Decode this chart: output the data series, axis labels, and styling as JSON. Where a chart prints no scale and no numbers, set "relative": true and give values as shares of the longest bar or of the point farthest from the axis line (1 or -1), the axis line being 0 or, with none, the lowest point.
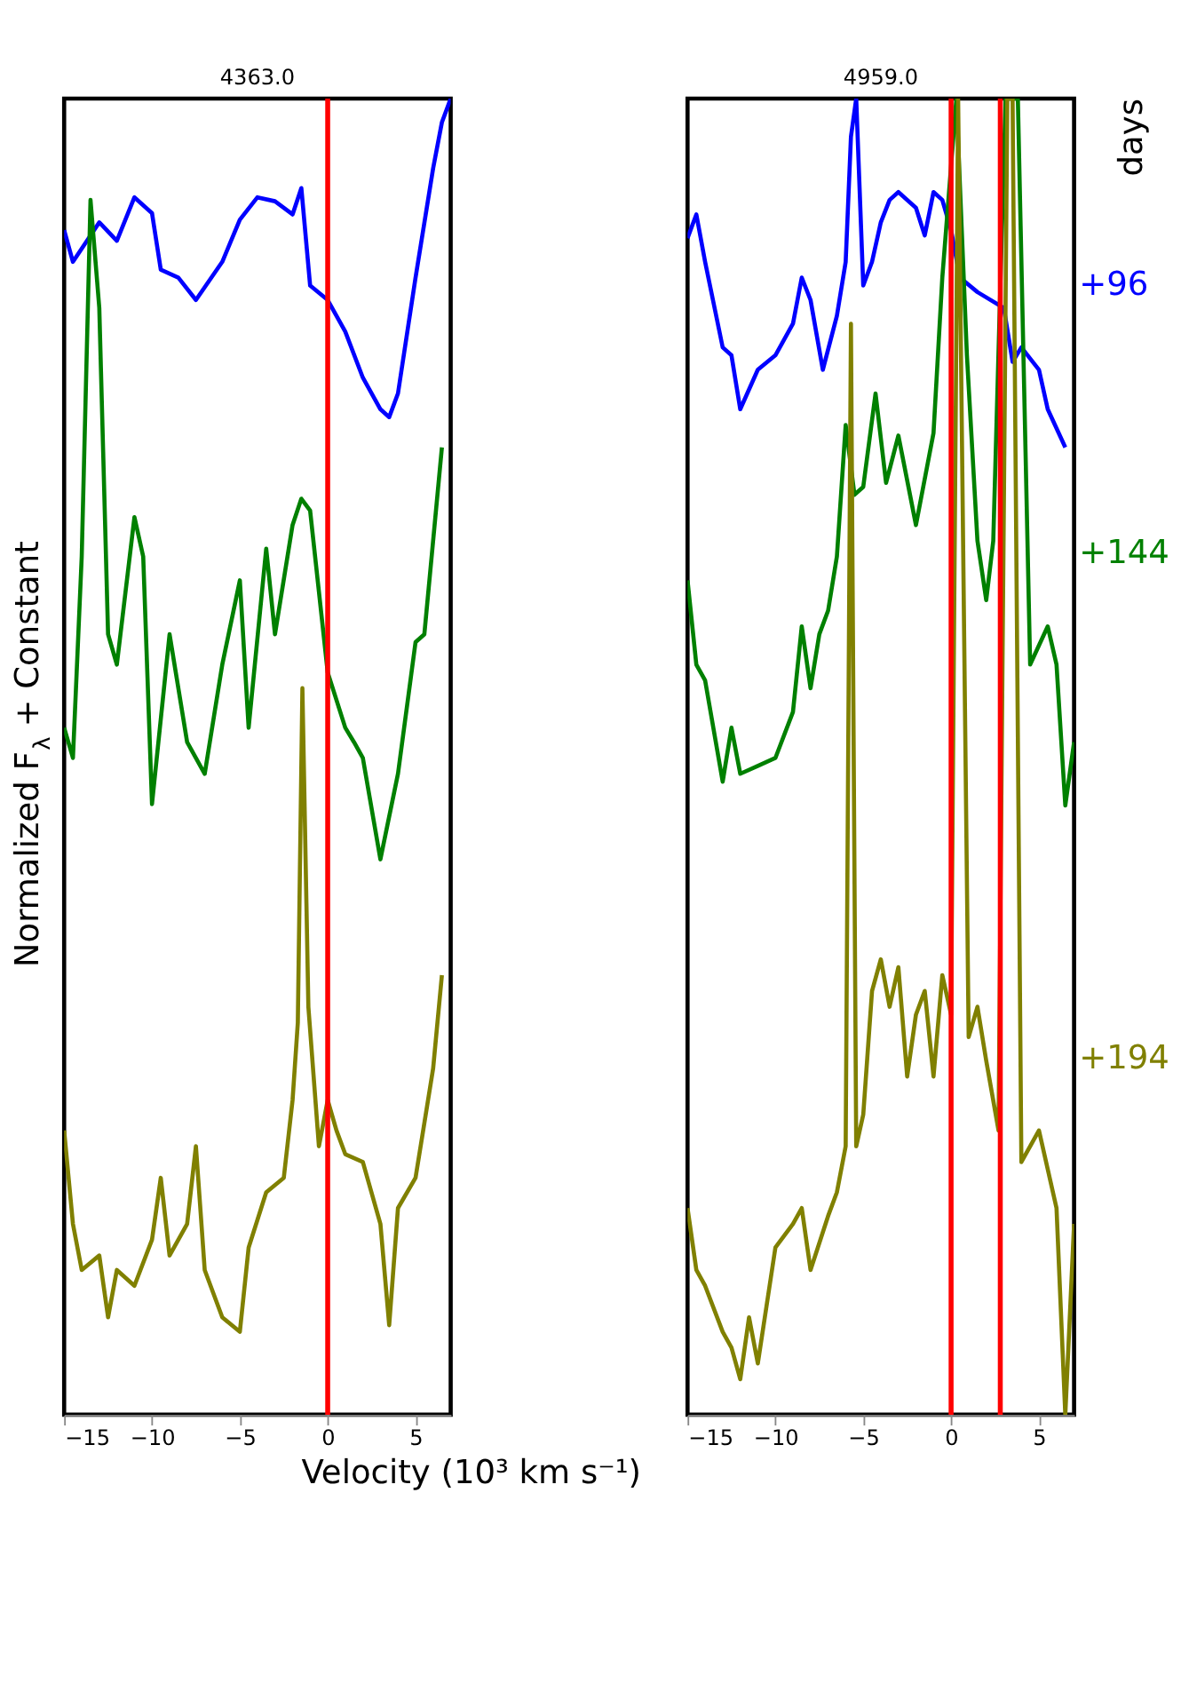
{
  "chart_data": [
    {
      "type": "line",
      "title": "4363.0",
      "xlabel": "Velocity (10³ km s⁻¹)",
      "ylabel": "Normalized F$_{λ}$ + Constant",
      "relative": true,
      "xlim": [
        -15,
        7
      ],
      "xticks": [
        -15,
        -10,
        -5,
        0,
        5
      ],
      "grid": false,
      "ref_lines": [
        {
          "axis": "x",
          "value": 0,
          "color": "#ff0000"
        }
      ],
      "series": [
        {
          "color": "#0000ff",
          "x": [
            -15,
            -14.5,
            -13,
            -12,
            -11,
            -10,
            -9.5,
            -8.5,
            -7.5,
            -6,
            -5,
            -4,
            -3,
            -2,
            -1.5,
            -1,
            0,
            1,
            2,
            3,
            3.5,
            4,
            5,
            6,
            6.5,
            7
          ],
          "values": [
            0.9,
            0.876,
            0.906,
            0.892,
            0.925,
            0.913,
            0.87,
            0.864,
            0.847,
            0.876,
            0.908,
            0.925,
            0.922,
            0.912,
            0.932,
            0.858,
            0.847,
            0.823,
            0.788,
            0.764,
            0.758,
            0.776,
            0.864,
            0.947,
            0.982,
            1.0
          ]
        },
        {
          "color": "#008000",
          "x": [
            -15,
            -14.5,
            -14,
            -13.5,
            -13,
            -12.5,
            -12,
            -11,
            -10.5,
            -10,
            -9,
            -8,
            -7,
            -6,
            -5,
            -4.5,
            -3.5,
            -3,
            -2,
            -1.5,
            -1,
            0,
            1,
            1.5,
            2,
            3,
            4,
            5,
            5.5,
            6.5
          ],
          "values": [
            0.522,
            0.499,
            0.652,
            0.923,
            0.841,
            0.593,
            0.57,
            0.682,
            0.652,
            0.464,
            0.593,
            0.511,
            0.487,
            0.57,
            0.634,
            0.522,
            0.658,
            0.593,
            0.676,
            0.696,
            0.687,
            0.564,
            0.522,
            0.511,
            0.499,
            0.422,
            0.487,
            0.587,
            0.593,
            0.735
          ]
        },
        {
          "color": "#808000",
          "x": [
            -15,
            -14.5,
            -14,
            -13,
            -12.5,
            -12,
            -11,
            -10,
            -9.5,
            -9,
            -8,
            -7.5,
            -7,
            -6,
            -5,
            -4.5,
            -3.5,
            -2.5,
            -2,
            -1.7,
            -1.44,
            -1.1,
            -0.5,
            0,
            0.5,
            1,
            2,
            3,
            3.5,
            4,
            5,
            6,
            6.5
          ],
          "values": [
            0.216,
            0.145,
            0.11,
            0.121,
            0.074,
            0.11,
            0.098,
            0.133,
            0.18,
            0.121,
            0.145,
            0.204,
            0.11,
            0.074,
            0.063,
            0.127,
            0.169,
            0.18,
            0.239,
            0.298,
            0.552,
            0.31,
            0.204,
            0.239,
            0.216,
            0.198,
            0.192,
            0.145,
            0.068,
            0.157,
            0.18,
            0.263,
            0.334
          ]
        }
      ]
    },
    {
      "type": "line",
      "title": "4959.0",
      "legend_title": "days",
      "relative": true,
      "xlim": [
        -15,
        7
      ],
      "xticks": [
        -15,
        -10,
        -5,
        0,
        5
      ],
      "grid": false,
      "ref_lines": [
        {
          "axis": "x",
          "value": 0,
          "color": "#ff0000"
        },
        {
          "axis": "x",
          "value": 2.8,
          "color": "#ff0000"
        }
      ],
      "series": [
        {
          "name": "+96",
          "color": "#0000ff",
          "x": [
            -15,
            -14.5,
            -14,
            -13,
            -12.5,
            -12,
            -11,
            -10,
            -9,
            -8.5,
            -8,
            -7.3,
            -6.5,
            -6,
            -5.7,
            -5.4,
            -5,
            -4.5,
            -4,
            -3.5,
            -3,
            -2,
            -1.5,
            -1,
            -0.5,
            0,
            0.5,
            1.5,
            3,
            3.5,
            4,
            5,
            5.5,
            6.5
          ],
          "values": [
            0.894,
            0.912,
            0.876,
            0.811,
            0.805,
            0.764,
            0.794,
            0.805,
            0.829,
            0.864,
            0.847,
            0.794,
            0.835,
            0.876,
            0.971,
            1.0,
            0.858,
            0.876,
            0.906,
            0.923,
            0.929,
            0.917,
            0.896,
            0.929,
            0.923,
            0.9,
            0.864,
            0.853,
            0.841,
            0.8,
            0.811,
            0.794,
            0.764,
            0.735
          ]
        },
        {
          "name": "+144",
          "color": "#008000",
          "x": [
            -15,
            -14.5,
            -14,
            -13,
            -12.5,
            -12,
            -11,
            -10,
            -9,
            -8.5,
            -8,
            -7.5,
            -7,
            -6.5,
            -6,
            -5.5,
            -5,
            -4.3,
            -3.7,
            -3,
            -2,
            -1,
            -0.5,
            0.3,
            0.9,
            1.5,
            2,
            2.4,
            3.1,
            3.8,
            4.5,
            5.5,
            6,
            6.5,
            7
          ],
          "values": [
            0.634,
            0.57,
            0.558,
            0.481,
            0.522,
            0.487,
            0.493,
            0.499,
            0.534,
            0.599,
            0.552,
            0.593,
            0.611,
            0.652,
            0.752,
            0.699,
            0.705,
            0.776,
            0.708,
            0.744,
            0.676,
            0.746,
            0.864,
            1.0,
            0.805,
            0.664,
            0.619,
            0.664,
            1.0,
            1.0,
            0.57,
            0.599,
            0.57,
            0.463,
            0.511
          ]
        },
        {
          "name": "+194",
          "color": "#808000",
          "x": [
            -15,
            -14.5,
            -14,
            -13,
            -12.5,
            -12,
            -11.5,
            -11,
            -10,
            -9,
            -8.5,
            -8,
            -7,
            -6.5,
            -6,
            -5.7,
            -5.4,
            -5,
            -4.5,
            -4,
            -3.5,
            -3,
            -2.5,
            -2,
            -1.5,
            -1,
            -0.5,
            0,
            0.4,
            1,
            1.5,
            2,
            2.7,
            3.2,
            3.5,
            4,
            5,
            6,
            6.5,
            7
          ],
          "values": [
            0.157,
            0.11,
            0.098,
            0.063,
            0.051,
            0.027,
            0.074,
            0.039,
            0.127,
            0.145,
            0.157,
            0.11,
            0.151,
            0.169,
            0.204,
            0.829,
            0.204,
            0.228,
            0.322,
            0.346,
            0.31,
            0.34,
            0.257,
            0.304,
            0.322,
            0.257,
            0.334,
            0.304,
            1.0,
            0.287,
            0.31,
            0.269,
            0.216,
            1.0,
            1.0,
            0.192,
            0.216,
            0.157,
            0.0,
            0.145
          ]
        }
      ]
    }
  ]
}
